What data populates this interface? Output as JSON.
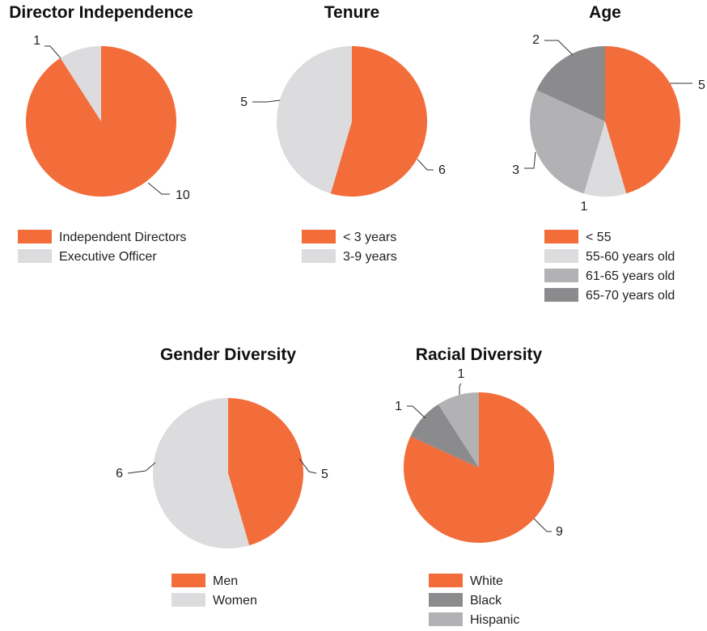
{
  "colors": {
    "orange": "#f26d3a",
    "light_gray": "#dcdcde",
    "mid_gray": "#b2b2b4",
    "dark_gray": "#8b8b8d"
  },
  "chart_data": [
    {
      "type": "pie",
      "title": "Director Independence",
      "slices": [
        {
          "label": "Independent Directors",
          "value": 10,
          "color": "#f26d3a"
        },
        {
          "label": "Executive Officer",
          "value": 1,
          "color": "#dcdcde"
        }
      ],
      "legend": [
        "Independent Directors",
        "Executive Officer"
      ]
    },
    {
      "type": "pie",
      "title": "Tenure",
      "slices": [
        {
          "label": "< 3 years",
          "value": 6,
          "color": "#f26d3a"
        },
        {
          "label": "3-9 years",
          "value": 5,
          "color": "#dcdcde"
        }
      ],
      "legend": [
        "< 3 years",
        "3-9 years"
      ]
    },
    {
      "type": "pie",
      "title": "Age",
      "slices": [
        {
          "label": "< 55",
          "value": 5,
          "color": "#f26d3a"
        },
        {
          "label": "55-60 years old",
          "value": 1,
          "color": "#dcdcde"
        },
        {
          "label": "61-65 years old",
          "value": 3,
          "color": "#b2b2b4"
        },
        {
          "label": "65-70 years old",
          "value": 2,
          "color": "#8b8b8d"
        }
      ],
      "legend": [
        "< 55",
        "55-60 years old",
        "61-65 years old",
        "65-70 years old"
      ]
    },
    {
      "type": "pie",
      "title": "Gender Diversity",
      "slices": [
        {
          "label": "Men",
          "value": 5,
          "color": "#f26d3a"
        },
        {
          "label": "Women",
          "value": 6,
          "color": "#dcdcde"
        }
      ],
      "legend": [
        "Men",
        "Women"
      ]
    },
    {
      "type": "pie",
      "title": "Racial Diversity",
      "slices": [
        {
          "label": "White",
          "value": 9,
          "color": "#f26d3a"
        },
        {
          "label": "Black",
          "value": 1,
          "color": "#8b8b8d"
        },
        {
          "label": "Hispanic",
          "value": 1,
          "color": "#b2b2b4"
        }
      ],
      "legend": [
        "White",
        "Black",
        "Hispanic"
      ]
    }
  ]
}
